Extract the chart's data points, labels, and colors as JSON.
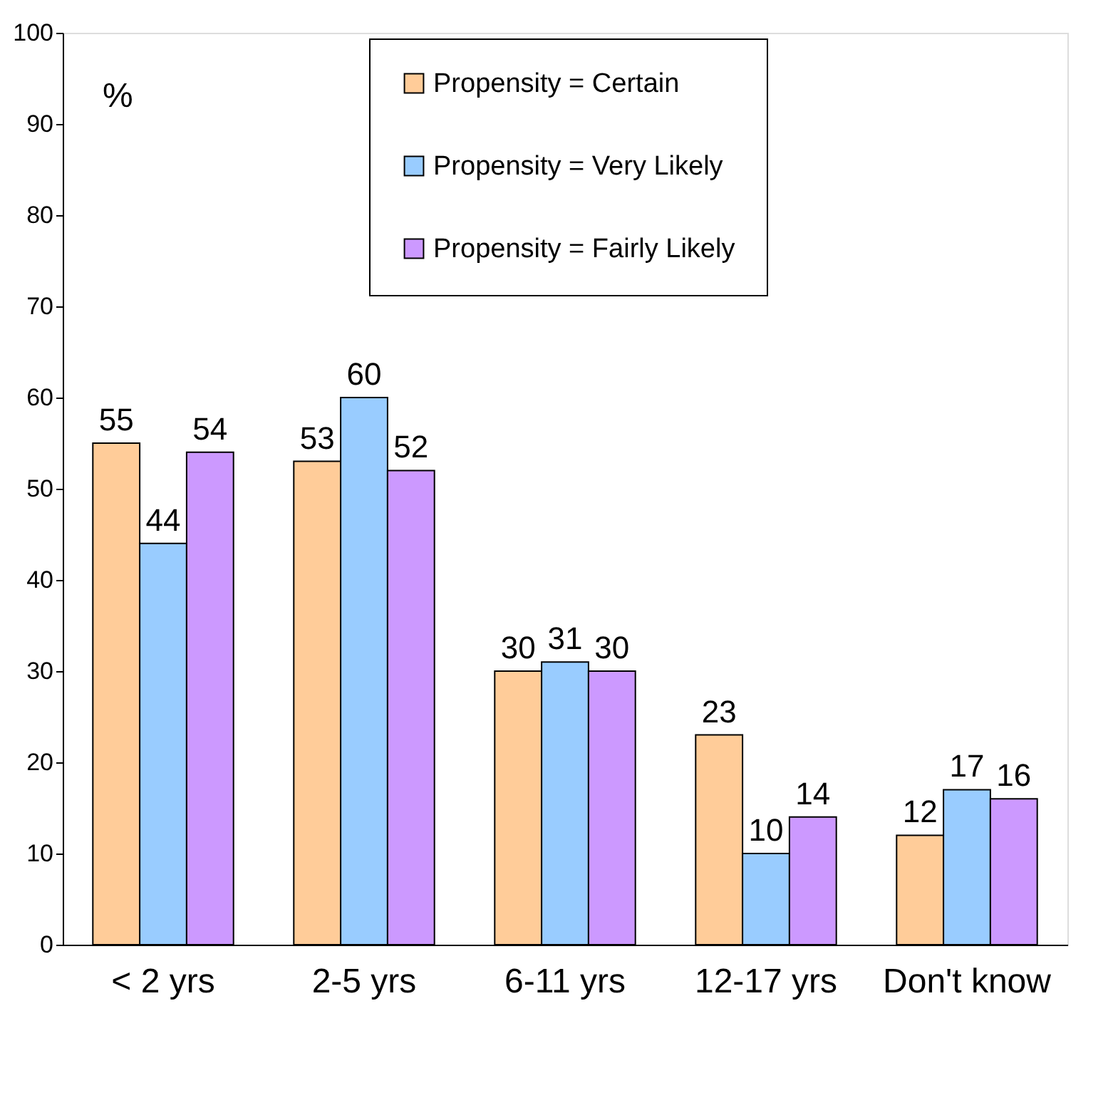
{
  "chart_data": {
    "type": "bar",
    "ylabel": "%",
    "categories": [
      "< 2 yrs",
      "2-5 yrs",
      "6-11 yrs",
      "12-17 yrs",
      "Don't know"
    ],
    "series": [
      {
        "name": "Propensity = Certain",
        "color": "#ffcc99",
        "values": [
          55,
          53,
          30,
          23,
          12
        ]
      },
      {
        "name": "Propensity = Very Likely",
        "color": "#99ccff",
        "values": [
          44,
          60,
          31,
          10,
          17
        ]
      },
      {
        "name": "Propensity = Fairly Likely",
        "color": "#cc99ff",
        "values": [
          54,
          52,
          30,
          14,
          16
        ]
      }
    ],
    "ylim": [
      0,
      100
    ],
    "yticks": [
      0,
      10,
      20,
      30,
      40,
      50,
      60,
      70,
      80,
      90,
      100
    ],
    "data_labels": true,
    "legend": "top",
    "grid": false
  }
}
